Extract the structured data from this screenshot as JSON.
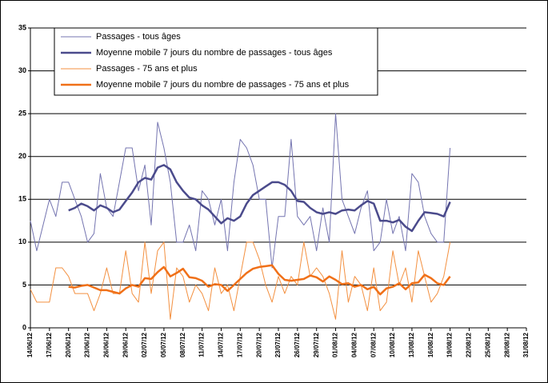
{
  "chart_data": {
    "type": "line",
    "categories": [
      "14/06/12",
      null,
      null,
      "17/06/12",
      null,
      null,
      "20/06/12",
      null,
      null,
      "23/06/12",
      null,
      null,
      "26/06/12",
      null,
      null,
      "29/06/12",
      null,
      null,
      "02/07/12",
      null,
      null,
      "05/07/12",
      null,
      null,
      "08/07/12",
      null,
      null,
      "11/07/12",
      null,
      null,
      "14/07/12",
      null,
      null,
      "17/07/12",
      null,
      null,
      "20/07/12",
      null,
      null,
      "23/07/12",
      null,
      null,
      "26/07/12",
      null,
      null,
      "29/07/12",
      null,
      null,
      "01/08/12",
      null,
      null,
      "04/08/12",
      null,
      null,
      "07/08/12",
      null,
      null,
      "10/08/12",
      null,
      null,
      "13/08/12",
      null,
      null,
      "16/08/12",
      null,
      null,
      "19/08/12",
      null,
      null,
      "22/08/12",
      null,
      null,
      "25/08/12",
      null,
      null,
      "28/08/12",
      null,
      null,
      "31/08/12"
    ],
    "series": [
      {
        "name": "Passages - tous âges",
        "color": "#7474b0",
        "width": 1,
        "values": [
          12.5,
          9,
          12,
          15,
          13,
          17,
          17,
          15,
          13,
          10,
          11,
          18,
          14,
          13,
          17,
          21,
          21,
          16,
          19,
          12,
          24,
          21,
          17,
          10,
          10,
          12,
          9,
          16,
          15,
          12,
          15,
          9,
          17,
          22,
          21,
          19,
          15,
          15,
          7,
          13,
          13,
          22,
          13,
          12,
          13,
          9,
          14,
          10,
          25,
          15,
          13,
          11,
          14,
          16,
          9,
          10,
          15,
          11,
          13,
          9,
          18,
          17,
          13,
          11,
          10,
          10,
          21,
          null,
          null,
          null,
          null,
          null,
          null,
          null,
          null,
          null,
          null,
          null,
          null
        ]
      },
      {
        "name": "Moyenne mobile 7 jours du nombre de passages - tous âges",
        "color": "#4b4b8c",
        "width": 2.5,
        "values": [
          null,
          null,
          null,
          null,
          null,
          null,
          13.7,
          14,
          14.5,
          14.2,
          13.7,
          14.3,
          14,
          13.5,
          13.8,
          14.8,
          15.8,
          17,
          17.5,
          17.3,
          18.7,
          19,
          18.5,
          17,
          16,
          15.2,
          15,
          14.3,
          13.8,
          13,
          12.2,
          12.8,
          12.5,
          13,
          14.5,
          15.5,
          16,
          16.5,
          17,
          17,
          16.7,
          16,
          14.8,
          14.7,
          14,
          13.5,
          13.3,
          13.5,
          13.3,
          13.7,
          13.8,
          13.7,
          14.3,
          14.8,
          14.5,
          12.5,
          12.5,
          12.3,
          12.6,
          11.8,
          11.3,
          12.5,
          13.5,
          13.4,
          13.3,
          13,
          14.7,
          null,
          null,
          null,
          null,
          null,
          null,
          null,
          null,
          null,
          null,
          null,
          null
        ]
      },
      {
        "name": "Passages - 75 ans et plus",
        "color": "#f39040",
        "width": 1,
        "values": [
          4.5,
          3,
          3,
          3,
          7,
          7,
          6,
          4,
          4,
          4,
          2,
          4,
          7,
          4,
          4,
          9,
          4,
          3,
          10,
          4,
          9,
          10,
          1,
          7,
          6,
          3,
          5,
          4,
          2,
          7,
          4,
          5,
          2,
          6,
          10,
          10,
          8,
          5,
          3,
          6,
          4,
          6,
          5,
          10,
          6,
          7,
          6,
          4,
          1,
          9,
          3,
          6,
          5,
          2,
          7,
          2,
          3,
          9,
          5,
          7,
          3,
          9,
          6,
          3,
          4,
          6,
          10,
          null,
          null,
          null,
          null,
          null,
          null,
          null,
          null,
          null,
          null,
          null,
          null
        ]
      },
      {
        "name": "Moyenne mobile 7 jours du nombre de passages - 75 ans et plus",
        "color": "#f07018",
        "width": 2.5,
        "values": [
          null,
          null,
          null,
          null,
          null,
          null,
          4.8,
          4.7,
          4.9,
          5,
          4.7,
          4.4,
          4.4,
          4.2,
          4,
          4.6,
          5,
          4.8,
          5.8,
          5.7,
          6.5,
          7.1,
          6,
          6.4,
          6.9,
          5.9,
          5.8,
          5.5,
          4.8,
          5.1,
          5,
          4.3,
          5,
          5.7,
          6.4,
          6.9,
          7.1,
          7.2,
          7.3,
          6.3,
          5.6,
          5.5,
          5.6,
          5.7,
          6.1,
          5.9,
          5.4,
          6,
          5.6,
          5.1,
          5.2,
          4.8,
          5,
          4.5,
          4.8,
          3.9,
          4.6,
          4.8,
          5.2,
          4.5,
          5.2,
          5.3,
          6.2,
          5.8,
          5.2,
          5,
          6,
          null,
          null,
          null,
          null,
          null,
          null,
          null,
          null,
          null,
          null,
          null,
          null
        ]
      }
    ],
    "ylim": [
      0,
      35
    ],
    "yticks": [
      0,
      5,
      10,
      15,
      20,
      25,
      30,
      35
    ],
    "grid": true,
    "legend_position": "upper left"
  }
}
